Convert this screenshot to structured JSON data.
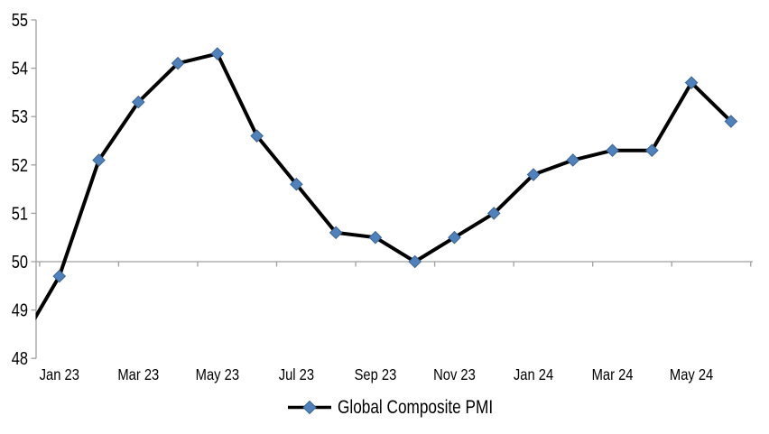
{
  "page": {
    "background": "#FFFFFF"
  },
  "chart_data": {
    "type": "line",
    "title": "",
    "series": [
      {
        "name": "Global Composite PMI",
        "categories": [
          "Dec 22",
          "Jan 23",
          "Feb 23",
          "Mar 23",
          "Apr 23",
          "May 23",
          "Jun 23",
          "Jul 23",
          "Aug 23",
          "Sep 23",
          "Oct 23",
          "Nov 23",
          "Dec 23",
          "Jan 24",
          "Feb 24",
          "Mar 24",
          "Apr 24",
          "May 24",
          "Jun 24"
        ],
        "values": [
          48.3,
          49.7,
          52.1,
          53.3,
          54.1,
          54.3,
          52.6,
          51.6,
          50.6,
          50.5,
          50.0,
          50.5,
          51.0,
          51.8,
          52.1,
          52.3,
          52.3,
          53.7,
          52.9
        ],
        "first_point_clipped_at_left_edge": true
      }
    ],
    "x_axis": {
      "visible_tick_labels": [
        "Jan 23",
        "Mar 23",
        "May 23",
        "Jul 23",
        "Sep 23",
        "Nov 23",
        "Jan 24",
        "Mar 24",
        "May 24"
      ],
      "label_interval_months": 2,
      "axis_crosses_at_value": 50,
      "tick_marks": "short downward ticks every 2 months along the 50 line"
    },
    "y_axis": {
      "min": 48,
      "max": 55,
      "tick_step": 1,
      "tick_labels": [
        "55",
        "54",
        "53",
        "52",
        "51",
        "50",
        "49",
        "48"
      ]
    },
    "legend": {
      "label": "Global Composite PMI",
      "position": "bottom-center",
      "marker": "diamond-on-line"
    },
    "grid": false,
    "styles": {
      "line_color": "#000000",
      "line_width": 4,
      "marker_shape": "diamond",
      "marker_color": "#4F81BD",
      "marker_border_color": "#3A648F",
      "axis_color": "#A0A0A0",
      "text_color": "#000000"
    }
  }
}
